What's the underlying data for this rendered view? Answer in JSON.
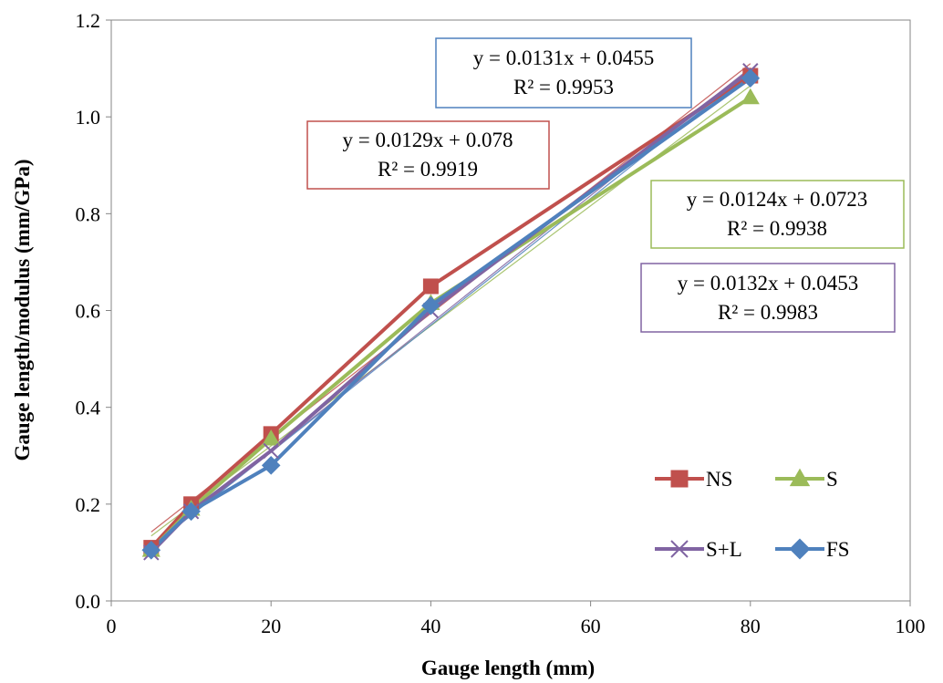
{
  "chart_data": {
    "type": "line",
    "xlabel": "Gauge length (mm)",
    "ylabel": "Gauge length/modulus (mm/GPa)",
    "xlim": [
      0,
      100
    ],
    "ylim": [
      0,
      1.2
    ],
    "xticks": [
      0,
      20,
      40,
      60,
      80,
      100
    ],
    "yticks": [
      0.0,
      0.2,
      0.4,
      0.6,
      0.8,
      1.0,
      1.2
    ],
    "xtick_labels": [
      "0",
      "20",
      "40",
      "60",
      "80",
      "100"
    ],
    "ytick_labels": [
      "0.0",
      "0.2",
      "0.4",
      "0.6",
      "0.8",
      "1.0",
      "1.2"
    ],
    "grid": false,
    "legend_position": "lower-right",
    "x": [
      5,
      10,
      20,
      40,
      80
    ],
    "series": [
      {
        "name": "NS",
        "color": "#C0504D",
        "marker": "square",
        "values": [
          0.11,
          0.2,
          0.345,
          0.65,
          1.085
        ],
        "trendline": {
          "slope": 0.0129,
          "intercept": 0.078,
          "equation": "y = 0.0129x  + 0.078",
          "r2": "R² = 0.9919"
        }
      },
      {
        "name": "S",
        "color": "#9BBB59",
        "marker": "triangle",
        "values": [
          0.105,
          0.19,
          0.335,
          0.615,
          1.04
        ],
        "trendline": {
          "slope": 0.0124,
          "intercept": 0.0723,
          "equation": "y = 0.0124x  + 0.0723",
          "r2": "R² = 0.9938"
        }
      },
      {
        "name": "S+L",
        "color": "#8064A2",
        "marker": "x",
        "values": [
          0.1,
          0.185,
          0.31,
          0.6,
          1.095
        ],
        "trendline": {
          "slope": 0.0132,
          "intercept": 0.0453,
          "equation": "y = 0.0132x  + 0.0453",
          "r2": "R² = 0.9983"
        }
      },
      {
        "name": "FS",
        "color": "#4F81BD",
        "marker": "diamond",
        "values": [
          0.105,
          0.185,
          0.28,
          0.61,
          1.08
        ],
        "trendline": {
          "slope": 0.0131,
          "intercept": 0.0455,
          "equation": "y = 0.0131x  + 0.0455",
          "r2": "R² = 0.9953"
        }
      }
    ],
    "annotations": [
      {
        "series": "FS",
        "line1": "y = 0.0131x  + 0.0455",
        "line2": "R² = 0.9953",
        "border": "#4F81BD"
      },
      {
        "series": "NS",
        "line1": "y = 0.0129x  + 0.078",
        "line2": "R² = 0.9919",
        "border": "#C0504D"
      },
      {
        "series": "S",
        "line1": "y = 0.0124x  + 0.0723",
        "line2": "R² = 0.9938",
        "border": "#9BBB59"
      },
      {
        "series": "S+L",
        "line1": "y = 0.0132x  + 0.0453",
        "line2": "R² = 0.9983",
        "border": "#8064A2"
      }
    ]
  }
}
